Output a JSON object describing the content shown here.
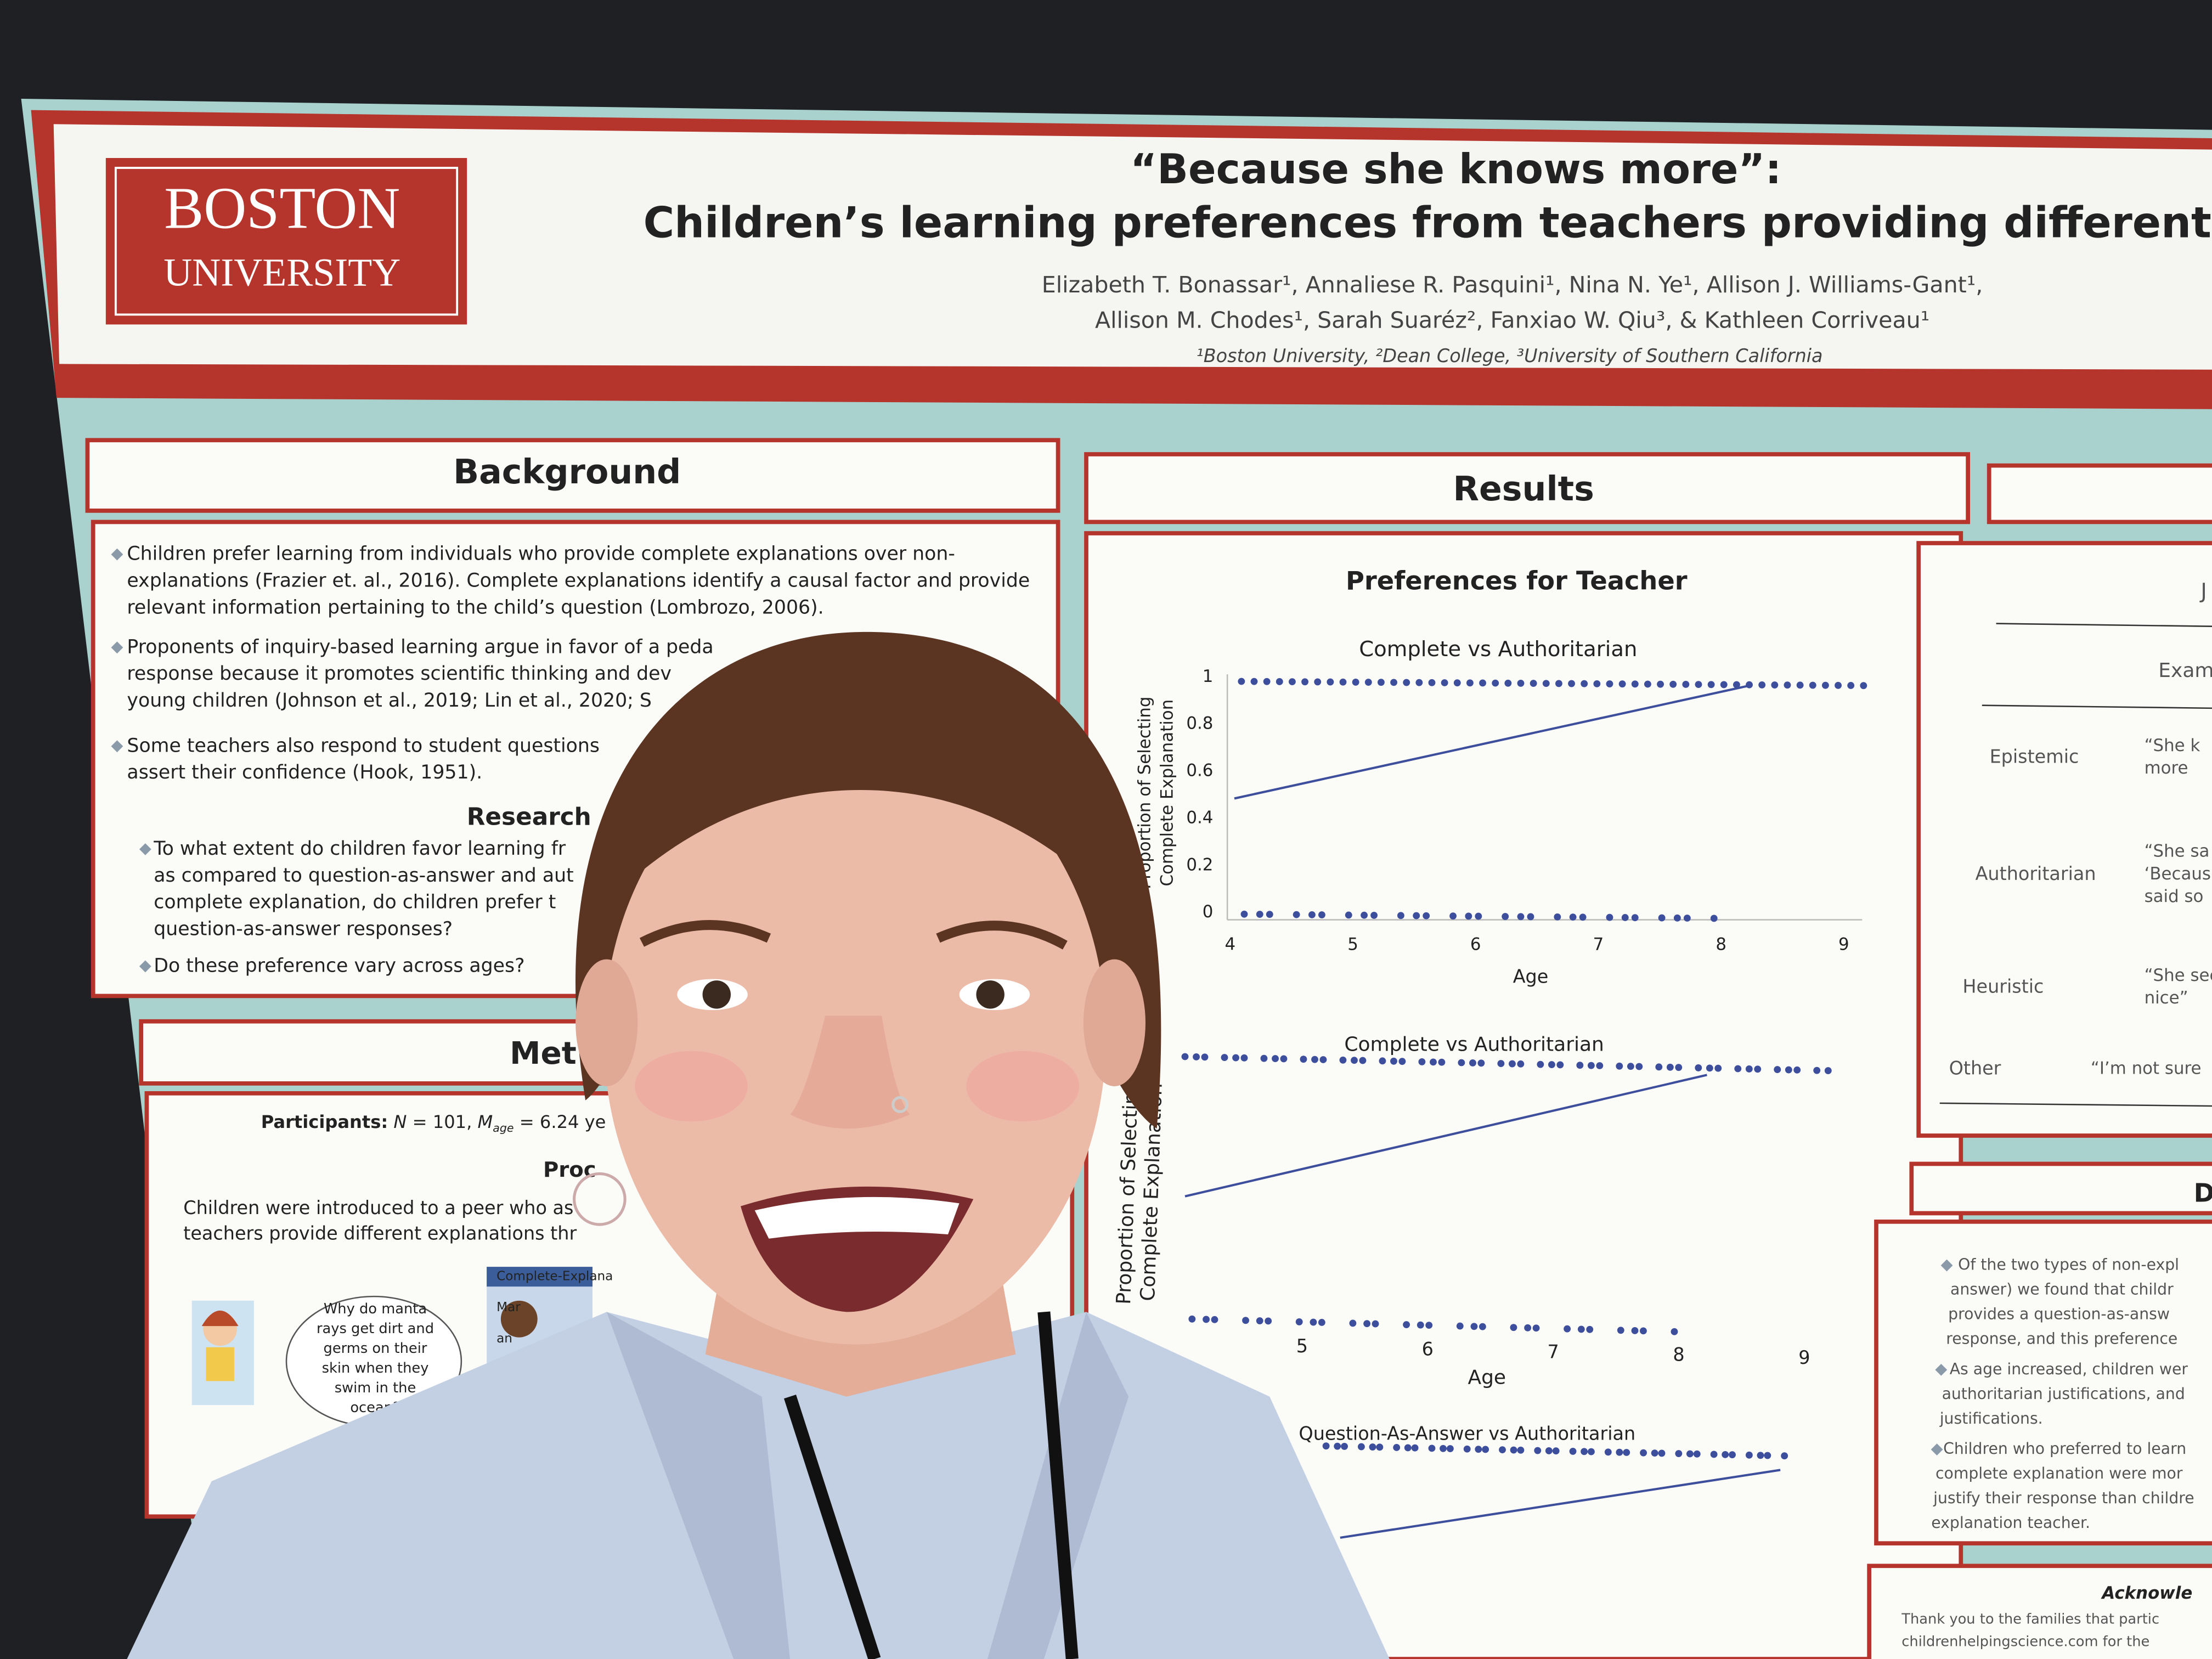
{
  "poster": {
    "logo": [
      "BOSTON",
      "UNIVERSITY"
    ],
    "title": [
      "“Because she knows more”:",
      "Children’s learning preferences from teachers providing different explanatio"
    ],
    "authors": [
      "Elizabeth T. Bonassar¹, Annaliese R. Pasquini¹, Nina N. Ye¹, Allison J. Williams-Gant¹,",
      "Allison M. Chodes¹, Sarah Suaréz², Fanxiao W. Qiu³, & Kathleen Corriveau¹"
    ],
    "affiliations": "¹Boston University, ²Dean College, ³University of Southern California",
    "background": {
      "heading": "Background",
      "bullets": [
        [
          "Children prefer learning from individuals who provide complete explanations over non-",
          "explanations (Frazier et. al., 2016). Complete explanations identify a causal factor and provide",
          "relevant information pertaining to the child’s question (Lombrozo, 2006)."
        ],
        [
          "Proponents of inquiry-based learning argue in favor of a peda",
          "response because it promotes scientific thinking and dev",
          "young children (Johnson et al., 2019; Lin et al., 2020; S"
        ],
        [
          "Some teachers also respond to student questions",
          "assert their confidence (Hook, 1951)."
        ]
      ],
      "research_heading": "Research",
      "research_bullets": [
        [
          "To what extent do children favor learning fr",
          "as compared to question-as-answer and aut",
          "complete explanation, do children prefer t",
          "question-as-answer responses?"
        ],
        [
          "Do these preference vary across ages?"
        ]
      ]
    },
    "methods": {
      "heading": "Met",
      "participants": [
        "Participants:",
        "N",
        " = 101, ",
        "M",
        "age",
        " = 6.24 ye"
      ],
      "procedure": "Proc",
      "text": [
        "Children were introduced to a peer who as",
        "teachers provide different explanations thr"
      ],
      "speech": [
        "Why do manta",
        "rays get dirt and",
        "germs on their",
        "skin when they",
        "swim in the",
        "ocean?"
      ],
      "card": [
        "Complete-Explana",
        "Mar",
        "an"
      ]
    },
    "results": {
      "heading": "Results",
      "subtitle": "Preferences for Teacher",
      "charts": [
        {
          "title": "Complete vs Authoritarian",
          "ylabel": [
            "Proportion of Selecting",
            "Complete Explanation"
          ],
          "yticks": [
            1,
            0.8,
            0.6,
            0.4,
            0.2,
            0
          ],
          "xticks": [
            4,
            5,
            6,
            7,
            8,
            9
          ],
          "xlabel": "Age"
        },
        {
          "title": "Complete vs Authoritarian",
          "ylabel": [
            "Proportion of Selecting",
            "Complete Explanation"
          ],
          "xticks": [
            5,
            6,
            7,
            8,
            9
          ],
          "xlabel": "Age"
        },
        {
          "title": "Question-As-Answer vs Authoritarian"
        }
      ]
    },
    "justifications": {
      "header": [
        "J",
        "Exam"
      ],
      "rows": [
        {
          "label": "Epistemic",
          "quote": [
            "“She k",
            "more"
          ]
        },
        {
          "label": "Authoritarian",
          "quote": [
            "“She sa",
            "‘Becaus",
            "said so"
          ]
        },
        {
          "label": "Heuristic",
          "quote": [
            "“She seem",
            "nice”"
          ]
        },
        {
          "label": "Other",
          "quote": [
            "“I’m not sure"
          ]
        }
      ]
    },
    "discussion": {
      "heading": "D",
      "lines": [
        "Of the two types of non-expl",
        "answer) we found that childr",
        "provides a question-as-answ",
        "response, and this preference",
        "As age increased, children wer",
        "authoritarian justifications, and",
        "justifications.",
        "Children who preferred to learn",
        "complete explanation were mor",
        "justify their response than childre",
        "explanation teacher."
      ]
    },
    "acknowledgments": {
      "heading": "Acknowle",
      "lines": [
        "Thank you to the families that partic",
        "childrenhelpingscience.com for the"
      ]
    }
  }
}
